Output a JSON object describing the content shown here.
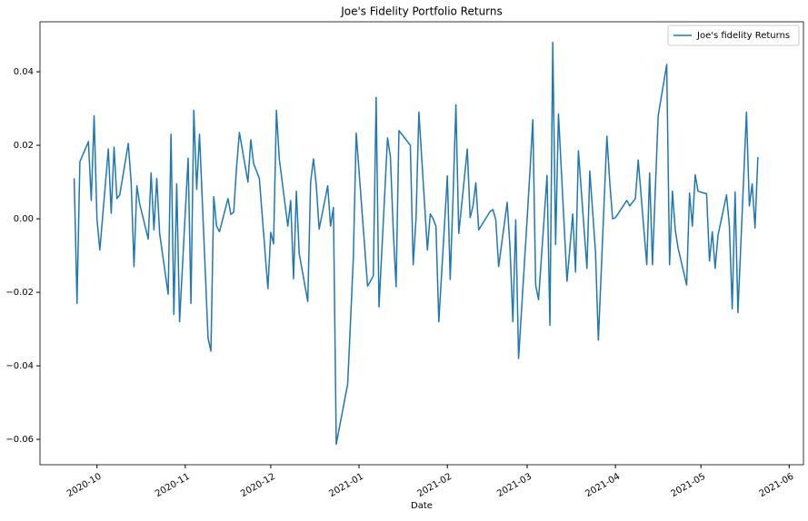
{
  "chart_data": {
    "type": "line",
    "title": "Joe's Fidelity Portfolio Returns",
    "xlabel": "Date",
    "legend": "upper right",
    "x": [
      "2020-09-23",
      "2020-09-24",
      "2020-09-25",
      "2020-09-28",
      "2020-09-29",
      "2020-09-30",
      "2020-10-01",
      "2020-10-02",
      "2020-10-05",
      "2020-10-06",
      "2020-10-07",
      "2020-10-08",
      "2020-10-09",
      "2020-10-12",
      "2020-10-13",
      "2020-10-14",
      "2020-10-15",
      "2020-10-16",
      "2020-10-19",
      "2020-10-20",
      "2020-10-21",
      "2020-10-22",
      "2020-10-23",
      "2020-10-26",
      "2020-10-27",
      "2020-10-28",
      "2020-10-29",
      "2020-10-30",
      "2020-11-02",
      "2020-11-03",
      "2020-11-04",
      "2020-11-05",
      "2020-11-06",
      "2020-11-09",
      "2020-11-10",
      "2020-11-11",
      "2020-11-12",
      "2020-11-13",
      "2020-11-16",
      "2020-11-17",
      "2020-11-18",
      "2020-11-19",
      "2020-11-20",
      "2020-11-23",
      "2020-11-24",
      "2020-11-25",
      "2020-11-27",
      "2020-11-30",
      "2020-12-01",
      "2020-12-02",
      "2020-12-03",
      "2020-12-04",
      "2020-12-07",
      "2020-12-08",
      "2020-12-09",
      "2020-12-10",
      "2020-12-11",
      "2020-12-14",
      "2020-12-15",
      "2020-12-16",
      "2020-12-17",
      "2020-12-18",
      "2020-12-21",
      "2020-12-22",
      "2020-12-23",
      "2020-12-24",
      "2020-12-28",
      "2020-12-29",
      "2020-12-30",
      "2020-12-31",
      "2021-01-04",
      "2021-01-05",
      "2021-01-06",
      "2021-01-07",
      "2021-01-08",
      "2021-01-11",
      "2021-01-12",
      "2021-01-13",
      "2021-01-14",
      "2021-01-15",
      "2021-01-19",
      "2021-01-20",
      "2021-01-21",
      "2021-01-22",
      "2021-01-25",
      "2021-01-26",
      "2021-01-27",
      "2021-01-28",
      "2021-01-29",
      "2021-02-01",
      "2021-02-02",
      "2021-02-03",
      "2021-02-04",
      "2021-02-05",
      "2021-02-08",
      "2021-02-09",
      "2021-02-10",
      "2021-02-11",
      "2021-02-12",
      "2021-02-16",
      "2021-02-17",
      "2021-02-18",
      "2021-02-19",
      "2021-02-22",
      "2021-02-23",
      "2021-02-24",
      "2021-02-25",
      "2021-02-26",
      "2021-03-01",
      "2021-03-02",
      "2021-03-03",
      "2021-03-04",
      "2021-03-05",
      "2021-03-08",
      "2021-03-09",
      "2021-03-10",
      "2021-03-11",
      "2021-03-12",
      "2021-03-15",
      "2021-03-16",
      "2021-03-17",
      "2021-03-18",
      "2021-03-19",
      "2021-03-22",
      "2021-03-23",
      "2021-03-24",
      "2021-03-25",
      "2021-03-26",
      "2021-03-29",
      "2021-03-30",
      "2021-03-31",
      "2021-04-01",
      "2021-04-05",
      "2021-04-06",
      "2021-04-07",
      "2021-04-08",
      "2021-04-09",
      "2021-04-12",
      "2021-04-13",
      "2021-04-14",
      "2021-04-15",
      "2021-04-16",
      "2021-04-19",
      "2021-04-20",
      "2021-04-21",
      "2021-04-22",
      "2021-04-23",
      "2021-04-26",
      "2021-04-27",
      "2021-04-28",
      "2021-04-29",
      "2021-04-30",
      "2021-05-03",
      "2021-05-04",
      "2021-05-05",
      "2021-05-06",
      "2021-05-07",
      "2021-05-10",
      "2021-05-11",
      "2021-05-12",
      "2021-05-13",
      "2021-05-14",
      "2021-05-17",
      "2021-05-18",
      "2021-05-19",
      "2021-05-20",
      "2021-05-21"
    ],
    "series": [
      {
        "name": "Joe's fidelity Returns",
        "color": "#1f77b4",
        "values": [
          0.011,
          -0.023,
          0.0155,
          0.021,
          0.005,
          0.028,
          0.0,
          -0.0085,
          0.019,
          0.0015,
          0.0195,
          0.0055,
          0.0065,
          0.0205,
          0.01,
          -0.013,
          0.009,
          0.004,
          -0.0055,
          0.0125,
          -0.003,
          0.011,
          -0.004,
          -0.0205,
          0.023,
          -0.026,
          0.0095,
          -0.028,
          0.0165,
          -0.023,
          0.0295,
          0.008,
          0.023,
          -0.0325,
          -0.036,
          0.006,
          -0.002,
          -0.0035,
          0.0055,
          0.0012,
          0.0018,
          0.014,
          0.0235,
          0.01,
          0.0215,
          0.015,
          0.011,
          -0.019,
          -0.0037,
          -0.0068,
          0.0295,
          0.0163,
          -0.002,
          0.005,
          -0.0163,
          0.0075,
          -0.0095,
          -0.0225,
          0.01,
          0.0163,
          0.009,
          -0.0028,
          0.009,
          -0.002,
          0.0031,
          -0.0613,
          -0.045,
          -0.028,
          -0.0105,
          0.0233,
          -0.0183,
          -0.017,
          -0.0155,
          0.033,
          -0.024,
          0.022,
          0.017,
          -0.003,
          -0.0185,
          0.024,
          0.02,
          -0.0125,
          0.0,
          0.029,
          -0.0085,
          0.0013,
          0.0,
          -0.002,
          -0.028,
          0.0117,
          -0.0165,
          0.006,
          0.031,
          -0.004,
          0.019,
          0.0003,
          0.0035,
          0.0098,
          -0.003,
          0.002,
          0.0025,
          -0.0003,
          -0.013,
          0.0045,
          -0.008,
          -0.028,
          -0.0003,
          -0.038,
          0.0,
          0.013,
          0.027,
          -0.018,
          -0.022,
          0.0118,
          -0.029,
          0.048,
          -0.007,
          0.0285,
          -0.017,
          -0.008,
          0.0013,
          -0.0145,
          0.0185,
          -0.0135,
          0.013,
          0.002,
          -0.009,
          -0.033,
          0.0225,
          0.01,
          0.0,
          0.0003,
          0.005,
          0.0035,
          0.0045,
          0.0055,
          0.016,
          -0.0125,
          0.0125,
          -0.0125,
          0.008,
          0.028,
          0.042,
          -0.0125,
          0.0075,
          -0.003,
          -0.008,
          -0.018,
          0.007,
          -0.002,
          0.012,
          0.0075,
          0.0068,
          -0.0115,
          -0.0035,
          -0.0135,
          -0.0045,
          0.0065,
          -0.002,
          -0.0245,
          0.0073,
          -0.0255,
          0.029,
          0.0035,
          0.0095,
          -0.0025,
          0.0168
        ]
      }
    ],
    "xlim": [
      "2020-09-11",
      "2021-06-06"
    ],
    "xticks": [
      {
        "value": "2020-10-01",
        "label": "2020-10"
      },
      {
        "value": "2020-11-01",
        "label": "2020-11"
      },
      {
        "value": "2020-12-01",
        "label": "2020-12"
      },
      {
        "value": "2021-01-01",
        "label": "2021-01"
      },
      {
        "value": "2021-02-01",
        "label": "2021-02"
      },
      {
        "value": "2021-03-01",
        "label": "2021-03"
      },
      {
        "value": "2021-04-01",
        "label": "2021-04"
      },
      {
        "value": "2021-05-01",
        "label": "2021-05"
      },
      {
        "value": "2021-06-01",
        "label": "2021-06"
      }
    ],
    "ylim": [
      -0.0669,
      0.0536
    ],
    "yticks": [
      {
        "value": -0.06,
        "label": "−0.06"
      },
      {
        "value": -0.04,
        "label": "−0.04"
      },
      {
        "value": -0.02,
        "label": "−0.02"
      },
      {
        "value": 0,
        "label": "0.00"
      },
      0.02,
      0.04
    ]
  }
}
